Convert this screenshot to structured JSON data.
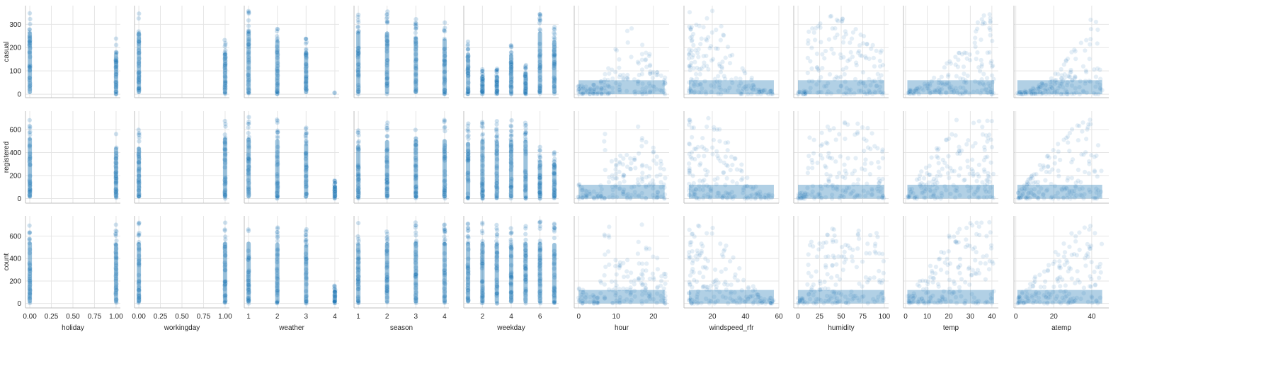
{
  "chart_data": {
    "type": "scatter",
    "kind": "pairplot",
    "grid": true,
    "point_color": "#1f77b4",
    "point_alpha": 0.12,
    "rows": [
      {
        "label": "casual",
        "ylim": [
          -15,
          380
        ],
        "yticks": [
          0,
          100,
          200,
          300
        ]
      },
      {
        "label": "registered",
        "ylim": [
          -40,
          760
        ],
        "yticks": [
          0,
          200,
          400,
          600
        ]
      },
      {
        "label": "count",
        "ylim": [
          -40,
          780
        ],
        "yticks": [
          0,
          200,
          400,
          600
        ]
      }
    ],
    "columns": [
      {
        "label": "holiday",
        "xlim": [
          -0.05,
          1.05
        ],
        "xticks": [
          "0.00",
          "0.25",
          "0.50",
          "0.75",
          "1.00"
        ],
        "points": [
          {
            "x": 0,
            "ymax": [
              360,
              710,
              735
            ]
          },
          {
            "x": 1,
            "ymax": [
              240,
              600,
              720
            ]
          }
        ]
      },
      {
        "label": "workingday",
        "xlim": [
          -0.05,
          1.05
        ],
        "xticks": [
          "0.00",
          "0.25",
          "0.50",
          "0.75",
          "1.00"
        ],
        "points": [
          {
            "x": 0,
            "ymax": [
              360,
              600,
              730
            ]
          },
          {
            "x": 1,
            "ymax": [
              240,
              710,
              735
            ]
          }
        ]
      },
      {
        "label": "weather",
        "xlim": [
          0.85,
          4.15
        ],
        "xticks": [
          "1",
          "2",
          "3",
          "4"
        ],
        "points": [
          {
            "x": 1,
            "ymax": [
              360,
              710,
              735
            ]
          },
          {
            "x": 2,
            "ymax": [
              310,
              690,
              725
            ]
          },
          {
            "x": 3,
            "ymax": [
              250,
              640,
              700
            ]
          },
          {
            "x": 4,
            "ymax": [
              6,
              158,
              164
            ]
          }
        ]
      },
      {
        "label": "season",
        "xlim": [
          0.85,
          4.15
        ],
        "xticks": [
          "1",
          "2",
          "3",
          "4"
        ],
        "points": [
          {
            "x": 1,
            "ymax": [
              360,
              630,
              720
            ]
          },
          {
            "x": 2,
            "ymax": [
              360,
              680,
              730
            ]
          },
          {
            "x": 3,
            "ymax": [
              330,
              690,
              735
            ]
          },
          {
            "x": 4,
            "ymax": [
              320,
              690,
              730
            ]
          }
        ]
      },
      {
        "label": "weekday",
        "xlim": [
          0.7,
          7.3
        ],
        "xticks": [
          "2",
          "4",
          "6"
        ],
        "points": [
          {
            "x": 1,
            "ymax": [
              240,
              660,
              730
            ]
          },
          {
            "x": 2,
            "ymax": [
              110,
              690,
              730
            ]
          },
          {
            "x": 3,
            "ymax": [
              110,
              680,
              720
            ]
          },
          {
            "x": 4,
            "ymax": [
              230,
              680,
              700
            ]
          },
          {
            "x": 5,
            "ymax": [
              130,
              680,
              730
            ]
          },
          {
            "x": 6,
            "ymax": [
              360,
              450,
              730
            ]
          },
          {
            "x": 7,
            "ymax": [
              310,
              420,
              720
            ]
          }
        ]
      }
    ],
    "scatter_columns": [
      {
        "label": "hour",
        "xlim": [
          -1.2,
          24.2
        ],
        "xticks": [
          "0",
          "10",
          "20"
        ]
      },
      {
        "label": "windspeed_rfr",
        "xlim": [
          3,
          60
        ],
        "xticks": [
          "20",
          "40",
          "60"
        ]
      },
      {
        "label": "humidity",
        "xlim": [
          -5,
          105
        ],
        "xticks": [
          "0",
          "25",
          "50",
          "75",
          "100"
        ]
      },
      {
        "label": "temp",
        "xlim": [
          -1,
          43
        ],
        "xticks": [
          "0",
          "10",
          "20",
          "30",
          "40"
        ]
      },
      {
        "label": "atemp",
        "xlim": [
          -1,
          49
        ],
        "xticks": [
          "0",
          "20",
          "40"
        ]
      }
    ]
  }
}
